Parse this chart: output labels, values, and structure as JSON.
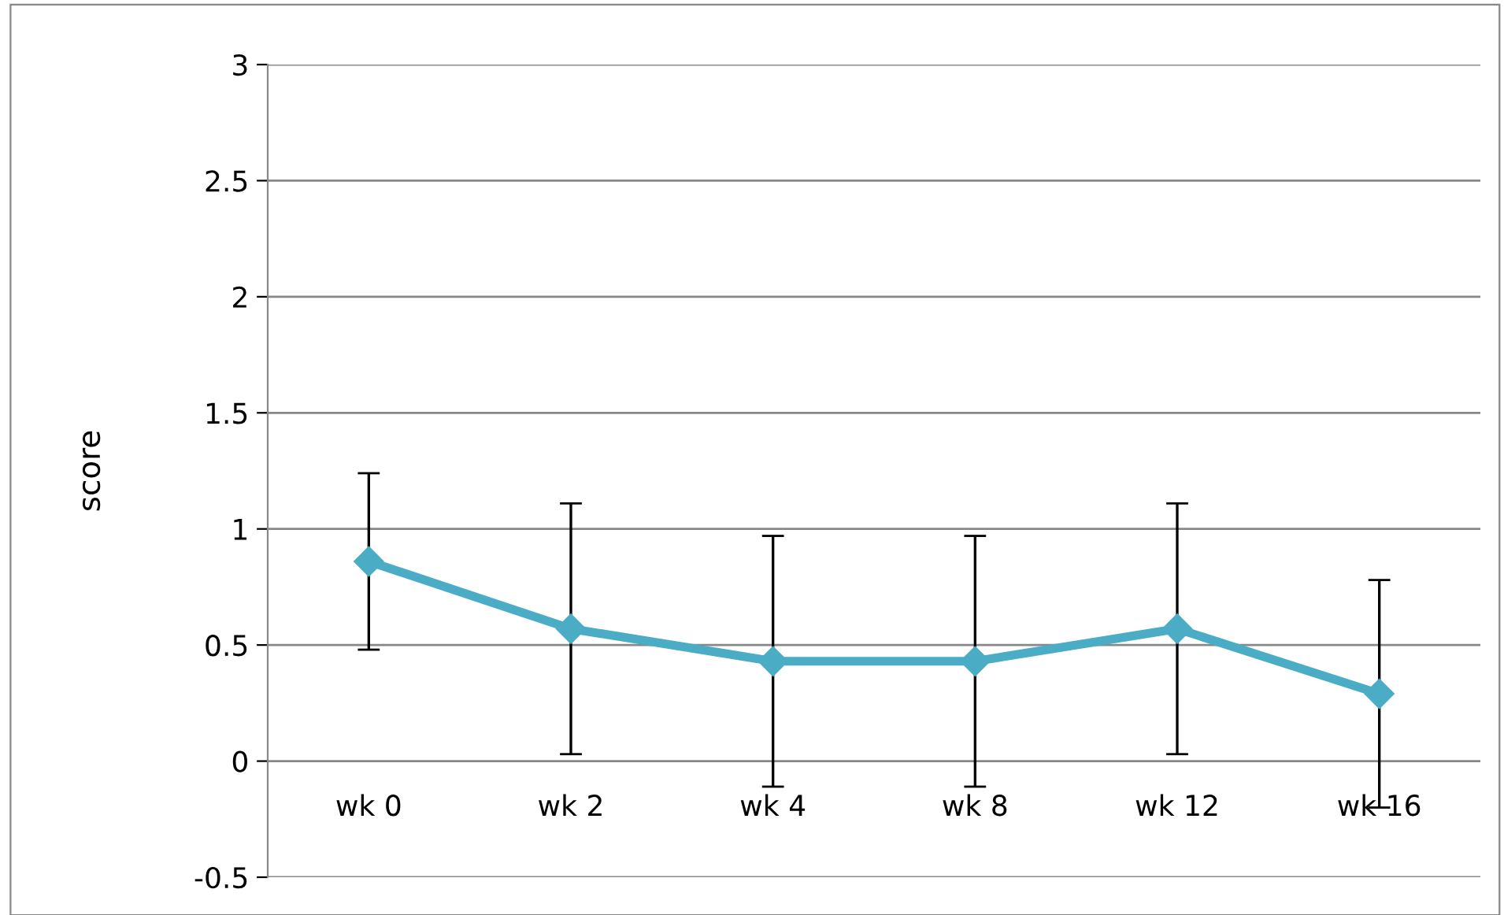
{
  "chart_data": {
    "type": "line",
    "ylabel": "score",
    "categories": [
      "wk 0",
      "wk 2",
      "wk 4",
      "wk 8",
      "wk 12",
      "wk 16"
    ],
    "series": [
      {
        "color": "#4bacc6",
        "values": [
          0.86,
          0.57,
          0.43,
          0.43,
          0.57,
          0.29
        ],
        "errors": [
          0.38,
          0.54,
          0.54,
          0.54,
          0.54,
          0.49
        ]
      }
    ],
    "ylim": [
      -0.5,
      3
    ],
    "yticks": [
      -0.5,
      0,
      0.5,
      1,
      1.5,
      2,
      2.5,
      3
    ],
    "grid": "y",
    "marker": "diamond",
    "line_style": "solid"
  }
}
